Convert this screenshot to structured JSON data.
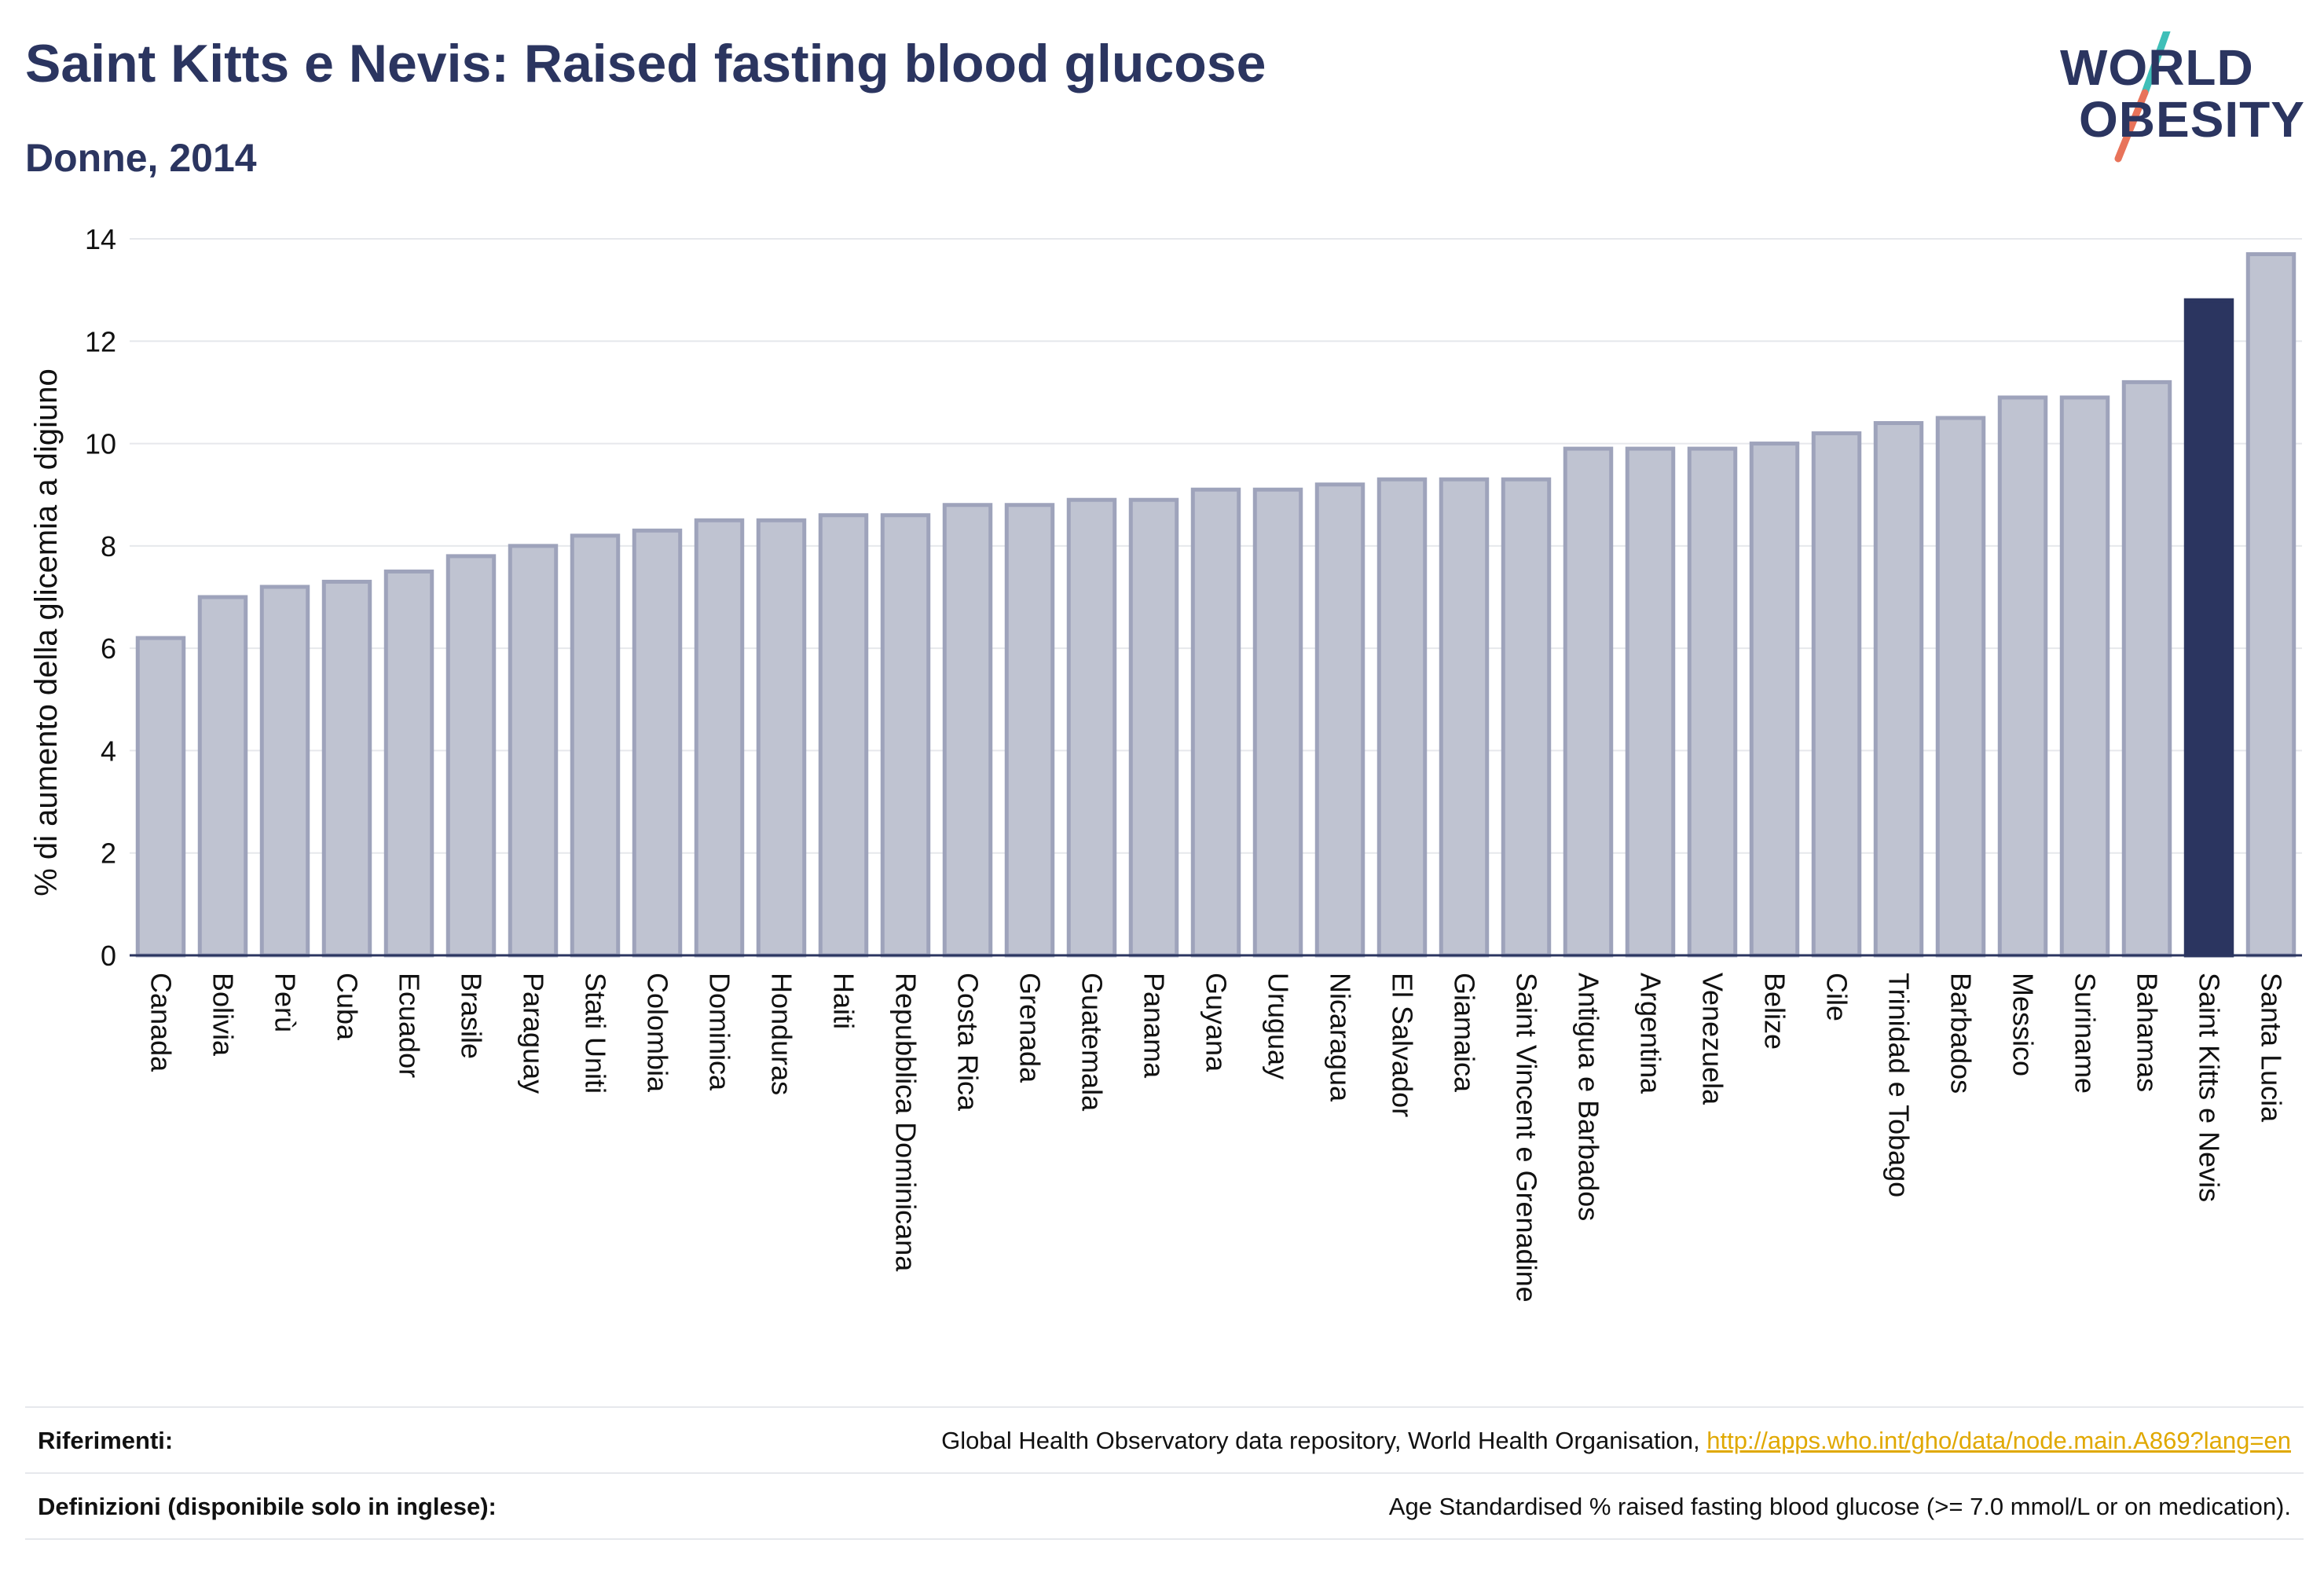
{
  "header": {
    "title": "Saint Kitts e Nevis: Raised fasting blood glucose",
    "subtitle": "Donne, 2014"
  },
  "logo": {
    "line1": "WORLD",
    "line2": "OBESITY",
    "slash_colors": [
      "#3fbfb8",
      "#e8735a"
    ]
  },
  "colors": {
    "bar_default": "#bfc3d1",
    "bar_default_border": "#9ea3bb",
    "bar_highlight": "#2b3560",
    "axis": "#2b3560",
    "grid": "#e6e8ec",
    "text": "#2b3560",
    "link": "#e0a800"
  },
  "chart_data": {
    "type": "bar",
    "ylabel": "% di aumento della glicemia a digiuno",
    "ylim": [
      0,
      14
    ],
    "yticks": [
      0,
      2,
      4,
      6,
      8,
      10,
      12,
      14
    ],
    "grid": true,
    "highlight": "Saint Kitts e Nevis",
    "categories": [
      "Canada",
      "Bolivia",
      "Perù",
      "Cuba",
      "Ecuador",
      "Brasile",
      "Paraguay",
      "Stati Uniti",
      "Colombia",
      "Dominica",
      "Honduras",
      "Haiti",
      "Repubblica Dominicana",
      "Costa Rica",
      "Grenada",
      "Guatemala",
      "Panama",
      "Guyana",
      "Uruguay",
      "Nicaragua",
      "El Salvador",
      "Giamaica",
      "Saint Vincent e Grenadine",
      "Antigua e Barbados",
      "Argentina",
      "Venezuela",
      "Belize",
      "Cile",
      "Trinidad e Tobago",
      "Barbados",
      "Messico",
      "Suriname",
      "Bahamas",
      "Saint Kitts e Nevis",
      "Santa Lucia"
    ],
    "values": [
      6.2,
      7.0,
      7.2,
      7.3,
      7.5,
      7.8,
      8.0,
      8.2,
      8.3,
      8.5,
      8.5,
      8.6,
      8.6,
      8.8,
      8.8,
      8.9,
      8.9,
      9.1,
      9.1,
      9.2,
      9.3,
      9.3,
      9.3,
      9.9,
      9.9,
      9.9,
      10.0,
      10.2,
      10.4,
      10.5,
      10.9,
      10.9,
      11.2,
      12.8,
      13.7
    ]
  },
  "footer": {
    "references_label": "Riferimenti:",
    "references_text": "Global Health Observatory data repository, World Health Organisation,",
    "references_link": "http://apps.who.int/gho/data/node.main.A869?lang=en",
    "definitions_label": "Definizioni (disponibile solo in inglese):",
    "definitions_text": "Age Standardised % raised fasting blood glucose (>= 7.0 mmol/L or on medication)."
  }
}
